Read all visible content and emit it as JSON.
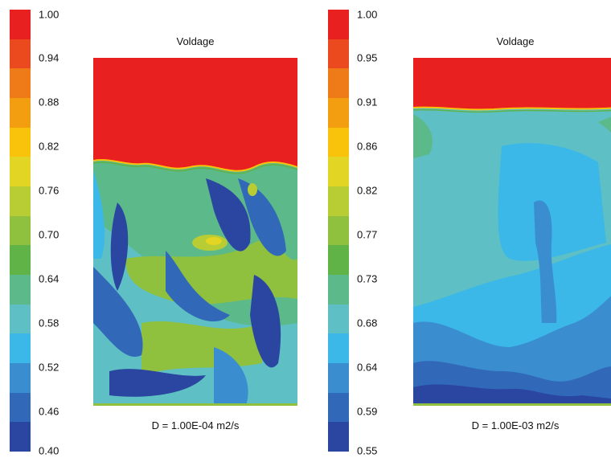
{
  "colorbar_left": {
    "ticks": [
      "1.00",
      "0.94",
      "0.88",
      "0.82",
      "0.76",
      "0.70",
      "0.64",
      "0.58",
      "0.52",
      "0.46",
      "0.40"
    ]
  },
  "colorbar_right": {
    "ticks": [
      "1.00",
      "0.95",
      "0.91",
      "0.86",
      "0.82",
      "0.77",
      "0.73",
      "0.68",
      "0.64",
      "0.59",
      "0.55"
    ]
  },
  "colorbar_colors": [
    "#e82020",
    "#ea4a1e",
    "#ef7a18",
    "#f39d10",
    "#f8c30a",
    "#e2d524",
    "#b8cc33",
    "#8fc13f",
    "#5fb347",
    "#5cb98a",
    "#5ec0c4",
    "#3bb8e8",
    "#3a8ed0",
    "#3268b8",
    "#2a46a0"
  ],
  "panels": [
    {
      "title": "Voldage",
      "caption": "D = 1.00E-04 m2/s"
    },
    {
      "title": "Voldage",
      "caption": "D = 1.00E-03 m2/s"
    }
  ]
}
